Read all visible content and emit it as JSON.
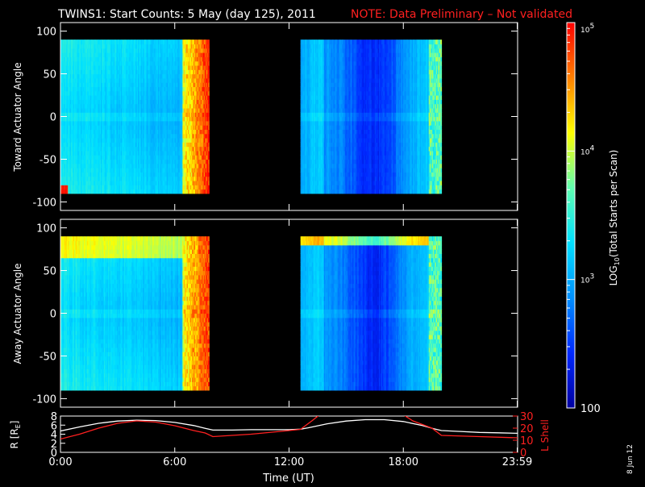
{
  "header": {
    "title": "TWINS1: Start Counts:  5 May (day 125), 2011",
    "note": "NOTE: Data Preliminary – Not validated"
  },
  "colors": {
    "background": "#000000",
    "axis": "#ffffff",
    "note": "#ff2020",
    "r_line": "#ffffff",
    "lshell_line": "#ff2020",
    "colormap": [
      "#0000a0",
      "#0028ff",
      "#0090ff",
      "#00e0ff",
      "#60ffb0",
      "#ffff00",
      "#ff8000",
      "#ff0000"
    ]
  },
  "colorbar": {
    "label_main": "LOG",
    "label_sub": "10",
    "label_rest": "(Total Starts per Scan)",
    "ticks": [
      {
        "value": 100,
        "label": "100",
        "kind": "plain"
      },
      {
        "value": 1000,
        "label": "10",
        "exp": "3",
        "kind": "power"
      },
      {
        "value": 10000,
        "label": "10",
        "exp": "4",
        "kind": "power"
      },
      {
        "value": 100000,
        "label": "10",
        "exp": "5",
        "kind": "power"
      }
    ]
  },
  "chart_data": [
    {
      "type": "heatmap",
      "ylabel": "Toward Actuator Angle",
      "xlim": [
        0,
        24
      ],
      "ylim": [
        -110,
        110
      ],
      "yticks": [
        100,
        50,
        0,
        -50,
        -100
      ],
      "data_y_range": [
        -90,
        90
      ],
      "data_time_ranges": [
        [
          0,
          7.8
        ],
        [
          12.6,
          20.0
        ]
      ],
      "zlim": [
        100,
        100000
      ],
      "zscale": "log"
    },
    {
      "type": "heatmap",
      "ylabel": "Away Actuator Angle",
      "xlim": [
        0,
        24
      ],
      "ylim": [
        -110,
        110
      ],
      "yticks": [
        100,
        50,
        0,
        -50,
        -100
      ],
      "data_y_range": [
        -90,
        90
      ],
      "data_time_ranges": [
        [
          0,
          7.8
        ],
        [
          12.6,
          20.0
        ]
      ],
      "zlim": [
        100,
        100000
      ],
      "zscale": "log"
    },
    {
      "type": "line",
      "xlabel": "Time (UT)",
      "ylabel_left": "R [R",
      "ylabel_left_sub": "E",
      "ylabel_left_end": "]",
      "ylabel_right": "L Shell",
      "xlim": [
        0,
        24
      ],
      "xticks": [
        {
          "value": 0,
          "label": "0:00"
        },
        {
          "value": 6,
          "label": "6:00"
        },
        {
          "value": 12,
          "label": "12:00"
        },
        {
          "value": 18,
          "label": "18:00"
        },
        {
          "value": 23.98,
          "label": "23:59"
        }
      ],
      "ylim_left": [
        0,
        8
      ],
      "yticks_left": [
        0,
        2,
        4,
        6,
        8
      ],
      "ylim_right": [
        0,
        30
      ],
      "yticks_right": [
        0,
        10,
        20,
        30
      ],
      "series": [
        {
          "axis": "left",
          "x": [
            0,
            1,
            2,
            3,
            4,
            5,
            6,
            7,
            7.6,
            8,
            9,
            10,
            11,
            12,
            12.6,
            13,
            14,
            15,
            16,
            17,
            18,
            19,
            19.6,
            20,
            21,
            22,
            23,
            24
          ],
          "y": [
            4.7,
            5.6,
            6.4,
            6.9,
            7.1,
            7.0,
            6.6,
            5.9,
            5.3,
            4.9,
            4.9,
            5.0,
            5.0,
            5.0,
            5.1,
            5.4,
            6.3,
            6.9,
            7.2,
            7.2,
            6.8,
            5.9,
            5.2,
            4.8,
            4.6,
            4.4,
            4.3,
            4.2
          ]
        },
        {
          "axis": "right",
          "x": [
            0,
            1,
            2,
            3,
            4,
            5,
            6,
            7,
            7.6,
            8,
            10,
            12,
            12.6,
            13.2,
            13.6,
            18.0,
            18.5,
            19.5,
            20,
            22,
            24
          ],
          "y": [
            11,
            15,
            20,
            24,
            26,
            25,
            22,
            18,
            16,
            13,
            15,
            18,
            19,
            26,
            31,
            31,
            26,
            20,
            14,
            13,
            12
          ]
        }
      ]
    }
  ],
  "footer": {
    "date_stamp": "8 Jun 12"
  }
}
